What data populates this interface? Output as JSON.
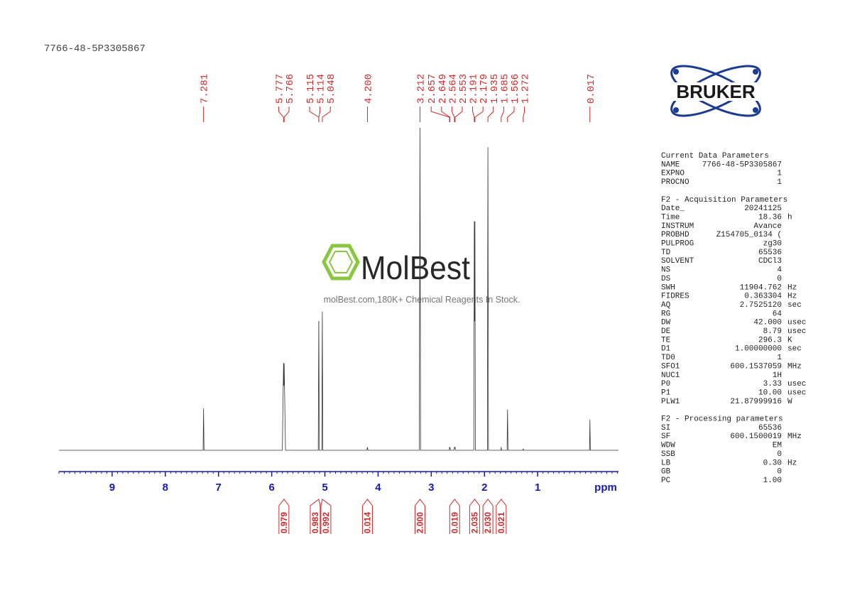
{
  "sample_id": "7766-48-5P3305867",
  "logo": {
    "text": "BRUKER"
  },
  "watermark": {
    "brand": "MolBest",
    "tagline": "molBest.com,180K+ Chemical Reagents In Stock."
  },
  "chart_data": {
    "type": "line",
    "xlabel": "ppm",
    "xlim": [
      10,
      -0.52
    ],
    "xticks": [
      9,
      8,
      7,
      6,
      5,
      4,
      3,
      2,
      1
    ],
    "x_minor_step": 0.1,
    "ylim": [
      0,
      100
    ],
    "color": "#333333",
    "axis_color": "#1a1aa8",
    "annotation_color": "#cc2a2a",
    "x": [
      10,
      7.29,
      7.281,
      7.272,
      5.8,
      5.777,
      5.771,
      5.766,
      5.74,
      5.125,
      5.115,
      5.114,
      5.105,
      5.058,
      5.048,
      5.038,
      4.21,
      4.2,
      4.19,
      3.225,
      3.212,
      3.2,
      2.66,
      2.657,
      2.653,
      2.649,
      2.64,
      2.57,
      2.564,
      2.558,
      2.553,
      2.545,
      2.2,
      2.191,
      2.185,
      2.179,
      2.17,
      1.945,
      1.935,
      1.925,
      1.69,
      1.685,
      1.68,
      1.575,
      1.566,
      1.557,
      1.28,
      1.272,
      1.265,
      0.025,
      0.017,
      0.009,
      -0.52
    ],
    "values": [
      0,
      0,
      13,
      0,
      0,
      27,
      20,
      27,
      0,
      0,
      40,
      40,
      0,
      0,
      43,
      0,
      0,
      1,
      0,
      0,
      100,
      0,
      0,
      1,
      0.5,
      1,
      0,
      0,
      1,
      0.5,
      1,
      0,
      0,
      71,
      40,
      71,
      0,
      0,
      94,
      0,
      0,
      1,
      0,
      0,
      12.6,
      0,
      0,
      0.5,
      0,
      0,
      9.5,
      0,
      0
    ],
    "peak_labels": [
      7.281,
      5.777,
      5.766,
      5.115,
      5.114,
      5.048,
      {
        "value": 4.2,
        "label": "4.200"
      },
      3.212,
      2.657,
      2.649,
      2.564,
      2.553,
      2.191,
      2.179,
      1.935,
      1.685,
      1.566,
      1.272,
      0.017
    ],
    "integrals": {
      "x": [
        5.77,
        5.115,
        5.048,
        4.2,
        3.212,
        2.56,
        2.185,
        1.935,
        1.685
      ],
      "values": [
        0.979,
        0.983,
        0.992,
        0.014,
        {
          "value": 2,
          "label": "2.000"
        },
        0.019,
        2.035,
        {
          "value": 2.03,
          "label": "2.030"
        },
        0.021
      ]
    }
  },
  "parameters": [
    {
      "title": "Current Data Parameters",
      "rows": [
        [
          "NAME",
          "7766-48-5P3305867",
          ""
        ],
        [
          "EXPNO",
          "1",
          ""
        ],
        [
          "PROCNO",
          "1",
          ""
        ]
      ]
    },
    {
      "title": "F2 - Acquisition Parameters",
      "rows": [
        [
          "Date_",
          "20241125",
          ""
        ],
        [
          "Time",
          "18.36",
          "h"
        ],
        [
          "INSTRUM",
          "Avance",
          ""
        ],
        [
          "PROBHD",
          "Z154705_0134 (",
          ""
        ],
        [
          "PULPROG",
          "zg30",
          ""
        ],
        [
          "TD",
          "65536",
          ""
        ],
        [
          "SOLVENT",
          "CDCl3",
          ""
        ],
        [
          "NS",
          "4",
          ""
        ],
        [
          "DS",
          "0",
          ""
        ],
        [
          "SWH",
          "11904.762",
          "Hz"
        ],
        [
          "FIDRES",
          "0.363304",
          "Hz"
        ],
        [
          "AQ",
          "2.7525120",
          "sec"
        ],
        [
          "RG",
          "64",
          ""
        ],
        [
          "DW",
          "42.000",
          "usec"
        ],
        [
          "DE",
          "8.79",
          "usec"
        ],
        [
          "TE",
          "296.3",
          "K"
        ],
        [
          "D1",
          "1.00000000",
          "sec"
        ],
        [
          "TD0",
          "1",
          ""
        ],
        [
          "SFO1",
          "600.1537059",
          "MHz"
        ],
        [
          "NUC1",
          "1H",
          ""
        ],
        [
          "P0",
          "3.33",
          "usec"
        ],
        [
          "P1",
          "10.00",
          "usec"
        ],
        [
          "PLW1",
          "21.87999916",
          "W"
        ]
      ]
    },
    {
      "title": "F2 - Processing parameters",
      "rows": [
        [
          "SI",
          "65536",
          ""
        ],
        [
          "SF",
          "600.1500019",
          "MHz"
        ],
        [
          "WDW",
          "EM",
          ""
        ],
        [
          "SSB",
          "0",
          ""
        ],
        [
          "LB",
          "0.30",
          "Hz"
        ],
        [
          "GB",
          "0",
          ""
        ],
        [
          "PC",
          "1.00",
          ""
        ]
      ]
    }
  ]
}
